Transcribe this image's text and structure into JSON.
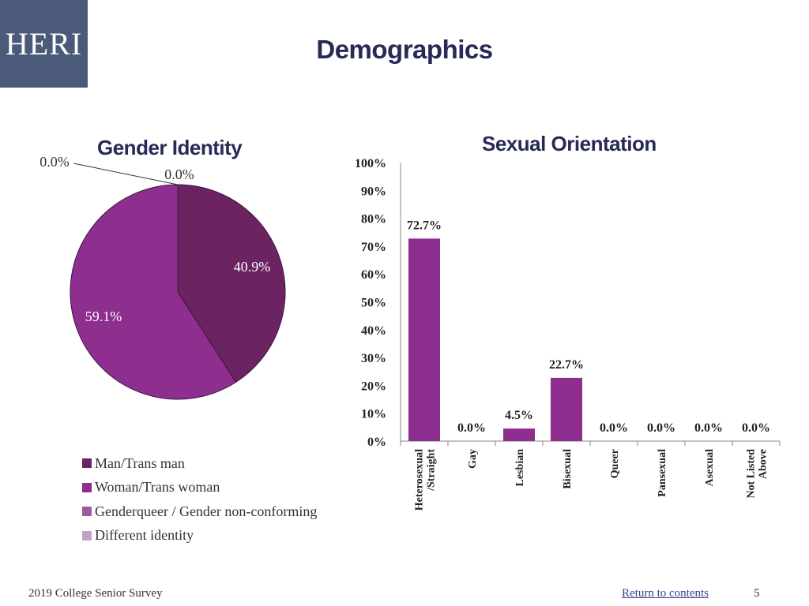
{
  "logo": {
    "text": "HERI"
  },
  "page": {
    "title": "Demographics"
  },
  "footer": {
    "survey": "2019 College Senior Survey",
    "return_link": "Return to contents",
    "page_number": "5"
  },
  "colors": {
    "logo_bg": "#4a5a78",
    "title": "#262a55",
    "bar": "#8e2f90"
  },
  "chart_data": [
    {
      "type": "pie",
      "title": "Gender Identity",
      "slices": [
        {
          "label": "Man/Trans man",
          "value": 40.9,
          "display": "40.9%",
          "color": "#6b2362"
        },
        {
          "label": "Woman/Trans woman",
          "value": 59.1,
          "display": "59.1%",
          "color": "#8e2f90"
        },
        {
          "label": "Genderqueer / Gender non-conforming",
          "value": 0.0,
          "display": "0.0%",
          "color": "#a05ba0"
        },
        {
          "label": "Different identity",
          "value": 0.0,
          "display": "0.0%",
          "color": "#bfa3c6"
        }
      ],
      "legend_position": "bottom"
    },
    {
      "type": "bar",
      "title": "Sexual Orientation",
      "categories": [
        "Heterosexual /Straight",
        "Gay",
        "Lesbian",
        "Bisexual",
        "Queer",
        "Pansexual",
        "Asexual",
        "Not Listed Above"
      ],
      "values": [
        72.7,
        0.0,
        4.5,
        22.7,
        0.0,
        0.0,
        0.0,
        0.0
      ],
      "data_labels": [
        "72.7%",
        "0.0%",
        "4.5%",
        "22.7%",
        "0.0%",
        "0.0%",
        "0.0%",
        "0.0%"
      ],
      "ylim": [
        0,
        100
      ],
      "yticks": [
        "0%",
        "10%",
        "20%",
        "30%",
        "40%",
        "50%",
        "60%",
        "70%",
        "80%",
        "90%",
        "100%"
      ],
      "grid": false,
      "color": "#8e2f90"
    }
  ]
}
